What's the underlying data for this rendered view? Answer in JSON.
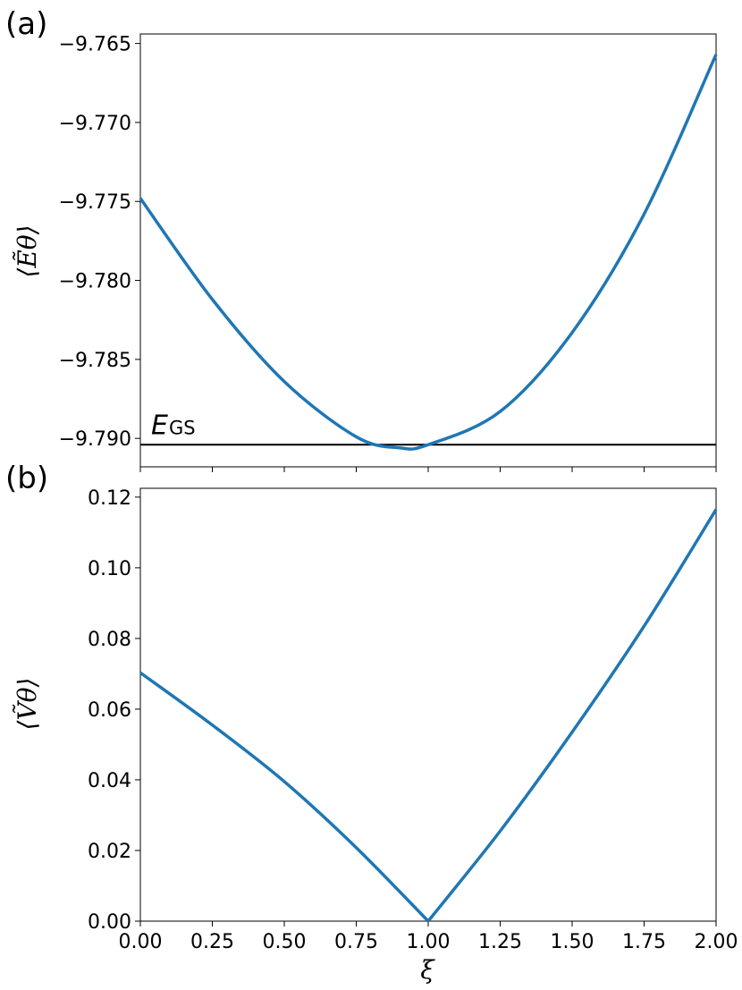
{
  "chart_data": [
    {
      "type": "line",
      "panel_label": "(a)",
      "ylabel": "⟨Ẽθ⟩",
      "xlim": [
        0.0,
        2.0
      ],
      "ylim": [
        -9.7918,
        -9.7644
      ],
      "yticks": [
        "−9.765",
        "−9.770",
        "−9.775",
        "−9.780",
        "−9.785",
        "−9.790"
      ],
      "ytick_values": [
        -9.765,
        -9.77,
        -9.775,
        -9.78,
        -9.785,
        -9.79
      ],
      "xticks": [
        0.0,
        0.25,
        0.5,
        0.75,
        1.0,
        1.25,
        1.5,
        1.75,
        2.0
      ],
      "grid": false,
      "series": [
        {
          "color": "#1f77b4",
          "x": [
            0.0,
            0.25,
            0.5,
            0.75,
            0.9,
            1.0,
            1.25,
            1.5,
            1.75,
            2.0
          ],
          "y": [
            -9.7748,
            -9.7812,
            -9.7864,
            -9.7899,
            -9.7906,
            -9.7904,
            -9.7883,
            -9.7833,
            -9.7758,
            -9.7657
          ]
        }
      ],
      "reference_line": {
        "y": -9.7904,
        "label_main": "E",
        "label_sub": "GS",
        "color": "#000000"
      }
    },
    {
      "type": "line",
      "panel_label": "(b)",
      "ylabel": "⟨Ṽθ⟩",
      "xlabel": "ξ",
      "xlim": [
        0.0,
        2.0
      ],
      "ylim": [
        0.0,
        0.1225
      ],
      "yticks": [
        "0.00",
        "0.02",
        "0.04",
        "0.06",
        "0.08",
        "0.10",
        "0.12"
      ],
      "ytick_values": [
        0.0,
        0.02,
        0.04,
        0.06,
        0.08,
        0.1,
        0.12
      ],
      "xticks": [
        "0.00",
        "0.25",
        "0.50",
        "0.75",
        "1.00",
        "1.25",
        "1.50",
        "1.75",
        "2.00"
      ],
      "xtick_values": [
        0.0,
        0.25,
        0.5,
        0.75,
        1.0,
        1.25,
        1.5,
        1.75,
        2.0
      ],
      "grid": false,
      "series": [
        {
          "color": "#1f77b4",
          "x": [
            0.0,
            0.25,
            0.5,
            0.75,
            1.0,
            1.25,
            1.5,
            1.75,
            2.0
          ],
          "y": [
            0.0703,
            0.0555,
            0.0395,
            0.0208,
            0.0,
            0.0255,
            0.0535,
            0.0835,
            0.1165
          ]
        }
      ]
    }
  ]
}
